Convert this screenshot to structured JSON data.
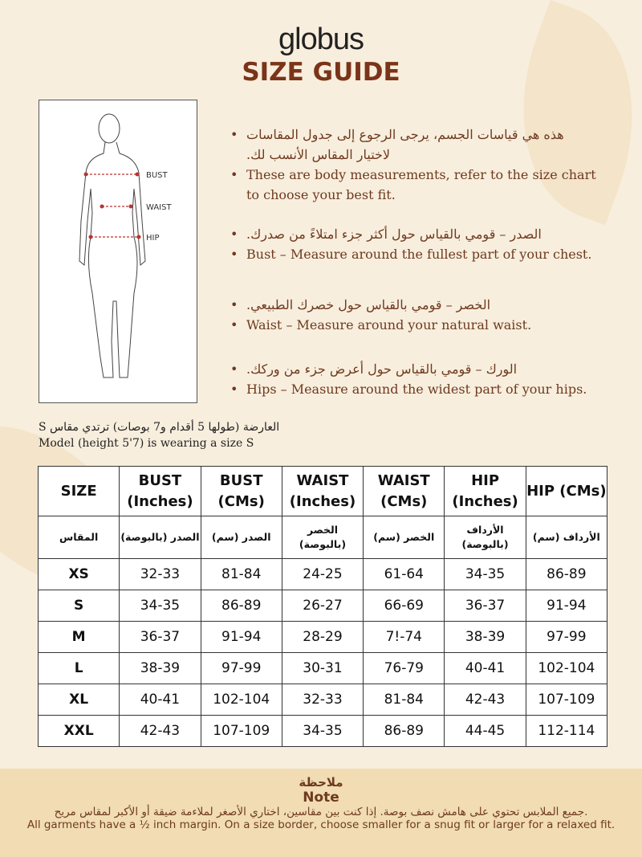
{
  "brand": "globus",
  "title": "SIZE GUIDE",
  "figure": {
    "labels": [
      "BUST",
      "WAIST",
      "HIP"
    ]
  },
  "bullets": [
    {
      "ar": "هذه هي قياسات الجسم، يرجى الرجوع إلى جدول المقاسات لاختيار المقاس الأنسب لك.",
      "en": "These are body measurements, refer to the size chart to choose your best fit."
    },
    {
      "ar": "الصدر – قومي بالقياس حول أكثر جزء امتلاءً من صدرك.",
      "en": "Bust – Measure around the fullest part of your chest."
    },
    {
      "ar": "الخصر – قومي بالقياس حول خصرك الطبيعي.",
      "en": "Waist – Measure around your natural waist."
    },
    {
      "ar": "الورك – قومي بالقياس حول أعرض جزء من وركك.",
      "en": "Hips – Measure around the widest part of your hips."
    }
  ],
  "model": {
    "ar": "العارضة (طولها 5 أقدام و7 بوصات) ترتدي مقاس S",
    "en": "Model (height 5'7) is wearing a size S"
  },
  "table": {
    "headers": [
      "SIZE",
      "BUST (Inches)",
      "BUST (CMs)",
      "WAIST (Inches)",
      "WAIST (CMs)",
      "HIP (Inches)",
      "HIP (CMs)"
    ],
    "headers_ar": [
      "المقاس",
      "الصدر (بالبوصة)",
      "الصدر (سم)",
      "الخصر (بالبوصة)",
      "الخصر (سم)",
      "الأرداف (بالبوصة)",
      "الأرداف (سم)"
    ],
    "rows": [
      [
        "XS",
        "32-33",
        "81-84",
        "24-25",
        "61-64",
        "34-35",
        "86-89"
      ],
      [
        "S",
        "34-35",
        "86-89",
        "26-27",
        "66-69",
        "36-37",
        "91-94"
      ],
      [
        "M",
        "36-37",
        "91-94",
        "28-29",
        "7!-74",
        "38-39",
        "97-99"
      ],
      [
        "L",
        "38-39",
        "97-99",
        "30-31",
        "76-79",
        "40-41",
        "102-104"
      ],
      [
        "XL",
        "40-41",
        "102-104",
        "32-33",
        "81-84",
        "42-43",
        "107-109"
      ],
      [
        "XXL",
        "42-43",
        "107-109",
        "34-35",
        "86-89",
        "44-45",
        "112-114"
      ]
    ]
  },
  "note": {
    "title_ar": "ملاحظة",
    "title": "Note",
    "text_ar": "جميع الملابس تحتوي على هامش نصف بوصة. إذا كنت بين مقاسين، اختاري الأصغر لملاءمة ضيقة أو الأكبر لمقاس مريح.",
    "text": "All garments have a ½ inch margin. On a size border, choose smaller for a snug fit or larger for a relaxed fit."
  }
}
